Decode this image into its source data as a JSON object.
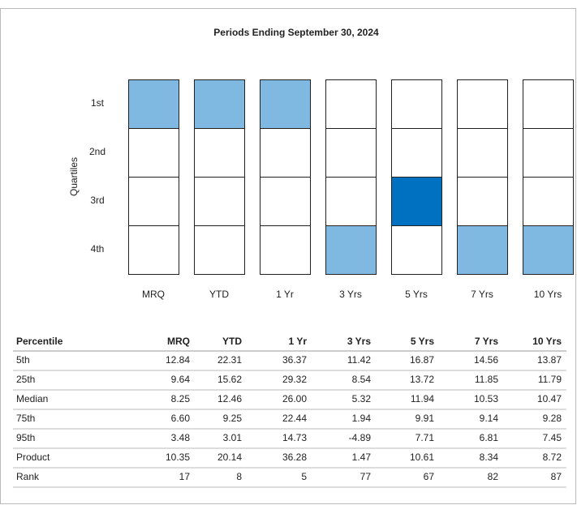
{
  "title": "Periods Ending September 30, 2024",
  "quartile_chart": {
    "y_label": "Quartiles",
    "quartile_labels": [
      "1st",
      "2nd",
      "3rd",
      "4th"
    ],
    "periods": [
      "MRQ",
      "YTD",
      "1 Yr",
      "3 Yrs",
      "5 Yrs",
      "7 Yrs",
      "10 Yrs"
    ],
    "product_quartile": [
      1,
      1,
      1,
      4,
      3,
      4,
      4
    ],
    "colors": [
      "#7fb8e0",
      "#7fb8e0",
      "#7fb8e0",
      "#7fb8e0",
      "#0070c0",
      "#7fb8e0",
      "#7fb8e0"
    ]
  },
  "table": {
    "header": [
      "Percentile",
      "MRQ",
      "YTD",
      "1 Yr",
      "3 Yrs",
      "5 Yrs",
      "7 Yrs",
      "10 Yrs"
    ],
    "rows": [
      [
        "5th",
        "12.84",
        "22.31",
        "36.37",
        "11.42",
        "16.87",
        "14.56",
        "13.87"
      ],
      [
        "25th",
        "9.64",
        "15.62",
        "29.32",
        "8.54",
        "13.72",
        "11.85",
        "11.79"
      ],
      [
        "Median",
        "8.25",
        "12.46",
        "26.00",
        "5.32",
        "11.94",
        "10.53",
        "10.47"
      ],
      [
        "75th",
        "6.60",
        "9.25",
        "22.44",
        "1.94",
        "9.91",
        "9.14",
        "9.28"
      ],
      [
        "95th",
        "3.48",
        "3.01",
        "14.73",
        "-4.89",
        "7.71",
        "6.81",
        "7.45"
      ],
      [
        "Product",
        "10.35",
        "20.14",
        "36.28",
        "1.47",
        "10.61",
        "8.34",
        "8.72"
      ],
      [
        "Rank",
        "17",
        "8",
        "5",
        "77",
        "67",
        "82",
        "87"
      ]
    ]
  }
}
